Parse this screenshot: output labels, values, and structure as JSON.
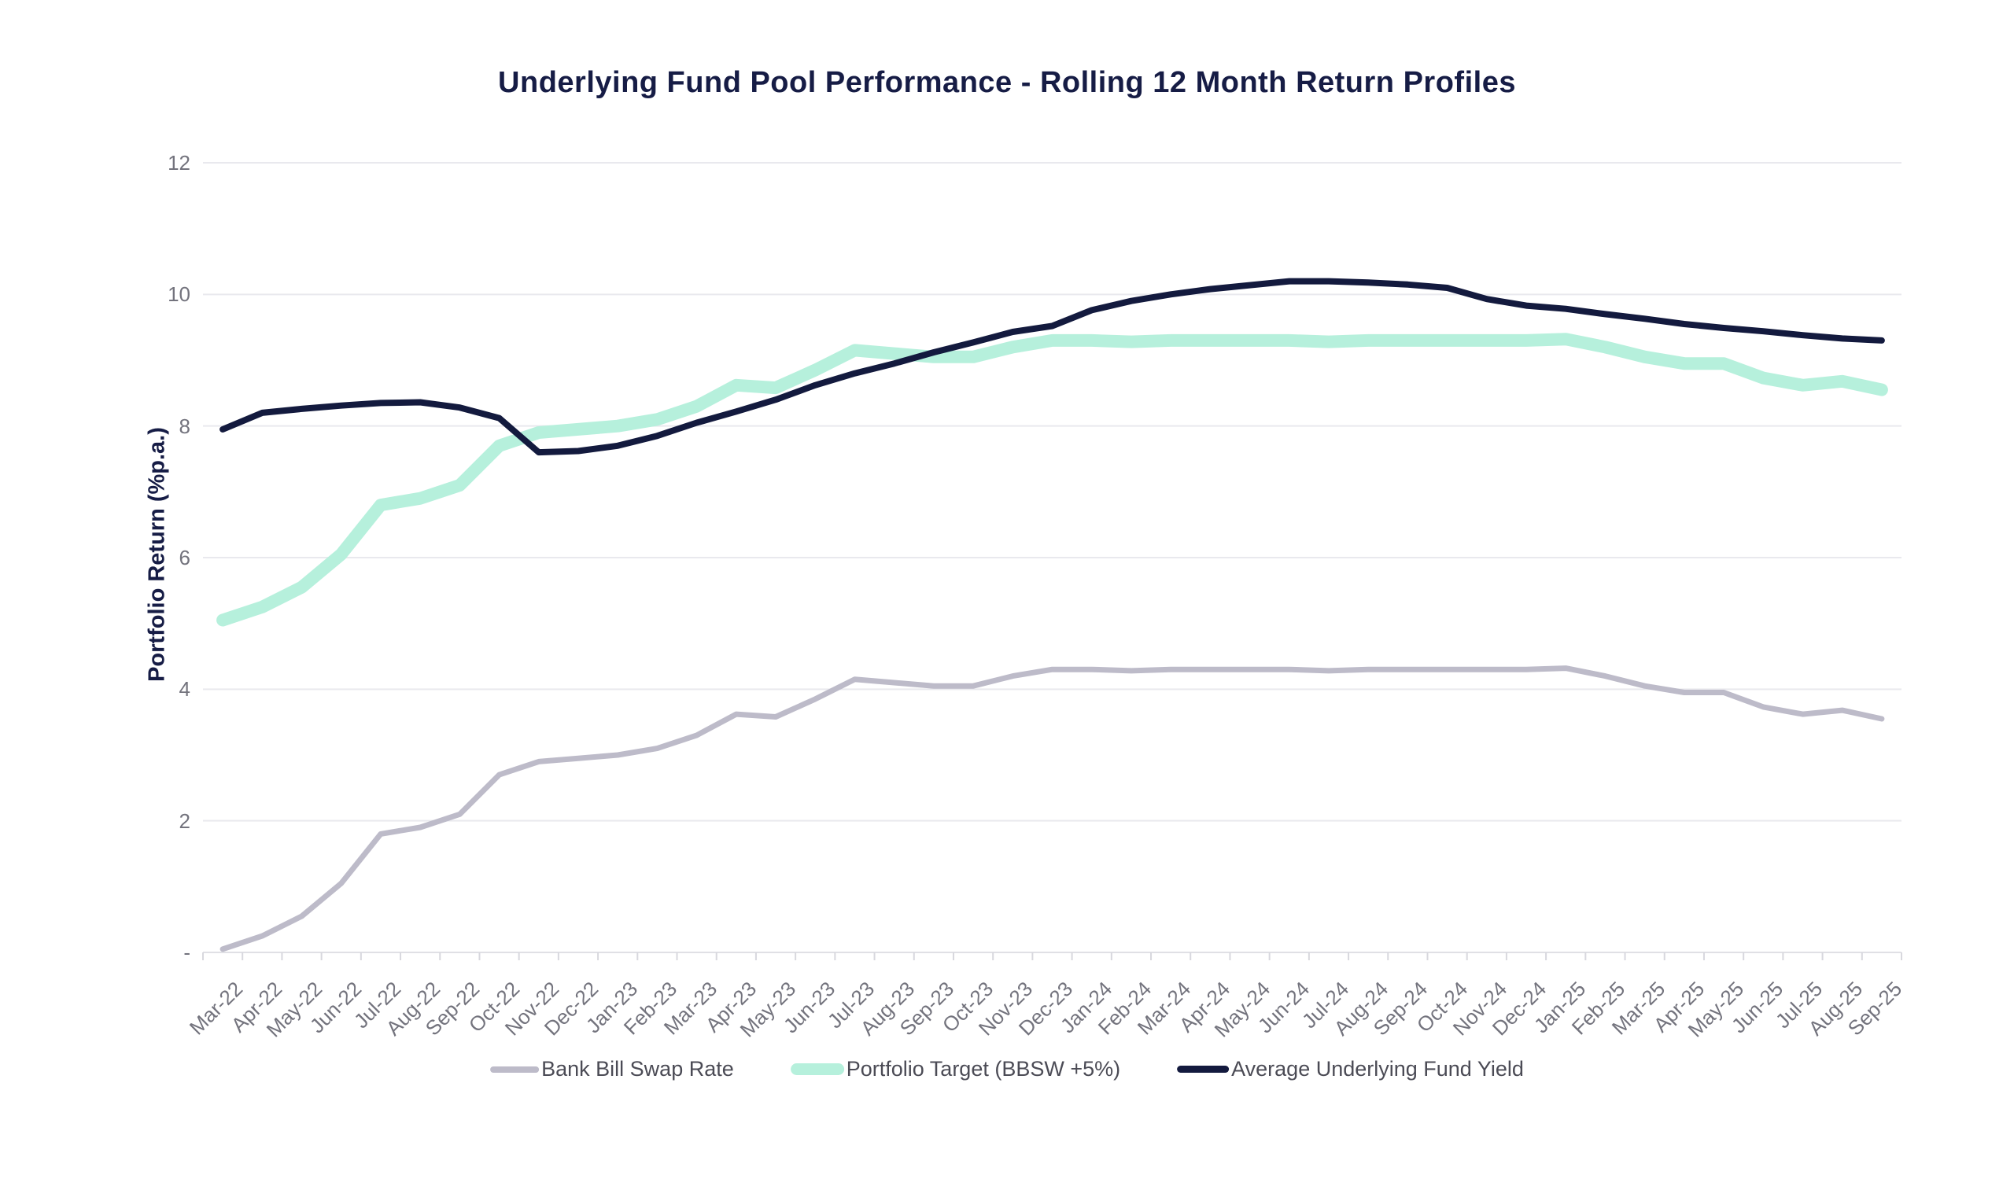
{
  "title": "Underlying Fund Pool Performance - Rolling 12 Month Return Profiles",
  "y_axis": {
    "title": "Portfolio Return (%p.a.)",
    "min": 0,
    "max": 12,
    "step": 2,
    "tick_labels_top_to_bottom": [
      "12",
      "10",
      "8",
      "6",
      "4",
      "2",
      "-"
    ]
  },
  "colors": {
    "title_text": "#161C45",
    "axis_text": "#73737D",
    "legend_text": "#4B4B55",
    "gridline": "#E9E9EE",
    "baseline": "#E0E0E5",
    "tick_mark": "#D8D8DE",
    "background": "#FFFFFF"
  },
  "chart_data": {
    "type": "line",
    "title": "Underlying Fund Pool Performance - Rolling 12 Month Return Profiles",
    "xlabel": "",
    "ylabel": "Portfolio Return (%p.a.)",
    "ylim": [
      0,
      12
    ],
    "grid": true,
    "legend_position": "bottom",
    "categories": [
      "Mar-22",
      "Apr-22",
      "May-22",
      "Jun-22",
      "Jul-22",
      "Aug-22",
      "Sep-22",
      "Oct-22",
      "Nov-22",
      "Dec-22",
      "Jan-23",
      "Feb-23",
      "Mar-23",
      "Apr-23",
      "May-23",
      "Jun-23",
      "Jul-23",
      "Aug-23",
      "Sep-23",
      "Oct-23",
      "Nov-23",
      "Dec-23",
      "Jan-24",
      "Feb-24",
      "Mar-24",
      "Apr-24",
      "May-24",
      "Jun-24",
      "Jul-24",
      "Aug-24",
      "Sep-24",
      "Oct-24",
      "Nov-24",
      "Dec-24",
      "Jan-25",
      "Feb-25",
      "Mar-25",
      "Apr-25",
      "May-25",
      "Jun-25",
      "Jul-25",
      "Aug-25",
      "Sep-25"
    ],
    "series": [
      {
        "id": "bank-bill-swap-rate",
        "name": "Bank Bill Swap Rate",
        "color": "#BDBBC9",
        "line_width": 7,
        "swatch": {
          "width": 62,
          "height": 8
        },
        "values": [
          0.05,
          0.25,
          0.55,
          1.05,
          1.8,
          1.9,
          2.1,
          2.7,
          2.9,
          2.95,
          3.0,
          3.1,
          3.3,
          3.62,
          3.58,
          3.85,
          4.15,
          4.1,
          4.05,
          4.05,
          4.2,
          4.3,
          4.3,
          4.28,
          4.3,
          4.3,
          4.3,
          4.3,
          4.28,
          4.3,
          4.3,
          4.3,
          4.3,
          4.3,
          4.32,
          4.2,
          4.05,
          3.95,
          3.95,
          3.73,
          3.62,
          3.68,
          3.55
        ]
      },
      {
        "id": "portfolio-target",
        "name": "Portfolio Target (BBSW +5%)",
        "color": "#B6F0DC",
        "line_width": 16,
        "swatch": {
          "width": 68,
          "height": 15
        },
        "values": [
          5.05,
          5.25,
          5.55,
          6.05,
          6.8,
          6.9,
          7.1,
          7.7,
          7.9,
          7.95,
          8.0,
          8.1,
          8.3,
          8.62,
          8.58,
          8.85,
          9.15,
          9.1,
          9.05,
          9.05,
          9.2,
          9.3,
          9.3,
          9.28,
          9.3,
          9.3,
          9.3,
          9.3,
          9.28,
          9.3,
          9.3,
          9.3,
          9.3,
          9.3,
          9.32,
          9.2,
          9.05,
          8.95,
          8.95,
          8.73,
          8.62,
          8.68,
          8.55
        ]
      },
      {
        "id": "average-underlying-fund-yield",
        "name": "Average Underlying Fund Yield",
        "color": "#131A3E",
        "line_width": 8,
        "swatch": {
          "width": 66,
          "height": 9
        },
        "values": [
          7.95,
          8.2,
          8.26,
          8.31,
          8.35,
          8.36,
          8.28,
          8.12,
          7.6,
          7.62,
          7.7,
          7.85,
          8.05,
          8.22,
          8.4,
          8.62,
          8.8,
          8.95,
          9.12,
          9.27,
          9.43,
          9.52,
          9.76,
          9.9,
          10.0,
          10.08,
          10.14,
          10.2,
          10.2,
          10.18,
          10.15,
          10.1,
          9.93,
          9.83,
          9.78,
          9.7,
          9.63,
          9.55,
          9.49,
          9.44,
          9.38,
          9.33,
          9.3
        ]
      }
    ]
  }
}
